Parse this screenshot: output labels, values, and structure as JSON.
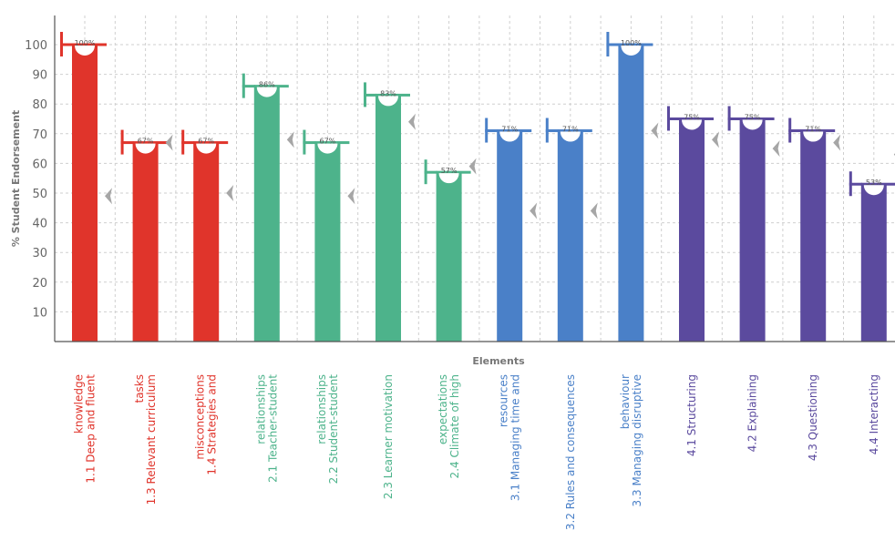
{
  "chart_data": {
    "type": "bar",
    "title": "",
    "xlabel": "Elements",
    "ylabel": "% Student Endorsement",
    "ylim": [
      0,
      105
    ],
    "yticks": [
      10,
      20,
      30,
      40,
      50,
      60,
      70,
      80,
      90,
      100
    ],
    "grid": true,
    "categories": [
      {
        "label_lines": [
          "1.1 Deep and fluent",
          "knowledge"
        ],
        "value": 100,
        "value_label": "100%",
        "color": "#e0342b",
        "marker": 49
      },
      {
        "label_lines": [
          "1.3 Relevant curriculum",
          "tasks"
        ],
        "value": 67,
        "value_label": "67%",
        "color": "#e0342b",
        "marker": 67
      },
      {
        "label_lines": [
          "1.4 Strategies and",
          "misconceptions"
        ],
        "value": 67,
        "value_label": "67%",
        "color": "#e0342b",
        "marker": 50
      },
      {
        "label_lines": [
          "2.1 Teacher-student",
          "relationships"
        ],
        "value": 86,
        "value_label": "86%",
        "color": "#4db38b",
        "marker": 68
      },
      {
        "label_lines": [
          "2.2 Student-student",
          "relationships"
        ],
        "value": 67,
        "value_label": "67%",
        "color": "#4db38b",
        "marker": 49
      },
      {
        "label_lines": [
          "2.3 Learner motivation"
        ],
        "value": 83,
        "value_label": "83%",
        "color": "#4db38b",
        "marker": 74
      },
      {
        "label_lines": [
          "2.4 Climate of high",
          "expectations"
        ],
        "value": 57,
        "value_label": "57%",
        "color": "#4db38b",
        "marker": 59
      },
      {
        "label_lines": [
          "3.1 Managing time and",
          "resources"
        ],
        "value": 71,
        "value_label": "71%",
        "color": "#4a80c8",
        "marker": 44
      },
      {
        "label_lines": [
          "3.2 Rules and consequences"
        ],
        "value": 71,
        "value_label": "71%",
        "color": "#4a80c8",
        "marker": 44
      },
      {
        "label_lines": [
          "3.3 Managing disruptive",
          "behaviour"
        ],
        "value": 100,
        "value_label": "100%",
        "color": "#4a80c8",
        "marker": 71
      },
      {
        "label_lines": [
          "4.1 Structuring"
        ],
        "value": 75,
        "value_label": "75%",
        "color": "#5b4a9e",
        "marker": 68
      },
      {
        "label_lines": [
          "4.2 Explaining"
        ],
        "value": 75,
        "value_label": "75%",
        "color": "#5b4a9e",
        "marker": 65
      },
      {
        "label_lines": [
          "4.3 Questioning"
        ],
        "value": 71,
        "value_label": "71%",
        "color": "#5b4a9e",
        "marker": 67
      },
      {
        "label_lines": [
          "4.4 Interacting"
        ],
        "value": 53,
        "value_label": "53%",
        "color": "#5b4a9e",
        "marker": 63
      }
    ],
    "marker_color": "#a6a6a6"
  }
}
